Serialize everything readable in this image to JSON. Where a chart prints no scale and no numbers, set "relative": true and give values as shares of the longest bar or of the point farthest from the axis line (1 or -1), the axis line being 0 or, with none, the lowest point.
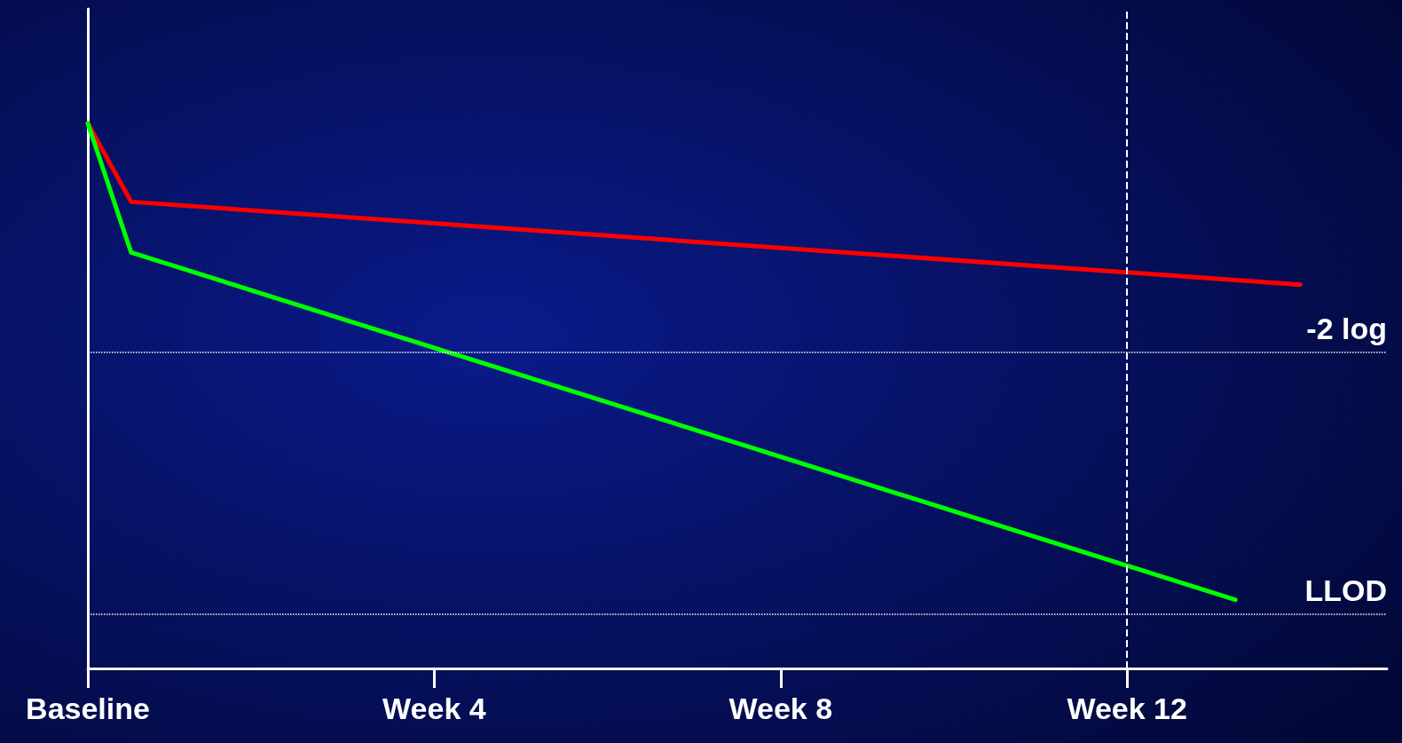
{
  "chart_data": {
    "type": "line",
    "relative": true,
    "marker": "none",
    "categories": [
      "Baseline",
      null,
      null,
      null,
      null,
      null,
      null,
      null,
      null,
      null,
      null,
      null,
      null,
      null,
      null,
      null,
      "Week 4",
      null,
      null,
      null,
      null,
      null,
      null,
      null,
      null,
      null,
      null,
      null,
      null,
      null,
      null,
      null,
      "Week 8",
      null,
      null,
      null,
      null,
      null,
      null,
      null,
      null,
      null,
      null,
      null,
      null,
      null,
      null,
      null,
      "Week 12",
      null,
      null,
      null,
      null,
      null,
      null,
      null,
      null,
      null,
      null,
      null,
      null
    ],
    "series": [
      {
        "color": "#ff0000",
        "values": [
          1,
          null,
          0.856,
          null,
          null,
          null,
          null,
          null,
          null,
          null,
          null,
          null,
          null,
          null,
          null,
          null,
          null,
          null,
          null,
          null,
          null,
          null,
          null,
          null,
          null,
          null,
          null,
          null,
          null,
          null,
          null,
          null,
          null,
          null,
          null,
          null,
          null,
          null,
          null,
          null,
          null,
          null,
          null,
          null,
          null,
          null,
          null,
          null,
          null,
          null,
          null,
          null,
          null,
          null,
          null,
          null,
          0.704,
          null,
          null,
          null,
          null
        ]
      },
      {
        "color": "#00ff00",
        "values": [
          1,
          null,
          0.763,
          null,
          null,
          null,
          null,
          null,
          null,
          null,
          null,
          null,
          null,
          null,
          null,
          null,
          null,
          null,
          null,
          null,
          null,
          null,
          null,
          null,
          null,
          null,
          null,
          null,
          null,
          null,
          null,
          null,
          null,
          null,
          null,
          null,
          null,
          null,
          null,
          null,
          null,
          null,
          null,
          null,
          null,
          null,
          null,
          null,
          null,
          null,
          null,
          null,
          null,
          0.126,
          null,
          null,
          null,
          null,
          null,
          null,
          null
        ]
      }
    ],
    "ref_lines": [
      {
        "axis": "y",
        "value": 0.581,
        "label": "-2 log",
        "color": "#ffffff",
        "line_style": "dotted"
      },
      {
        "axis": "y",
        "value": 0.101,
        "label": "LLOD",
        "color": "#ffffff",
        "line_style": "dotted"
      },
      {
        "axis": "x",
        "value": "Week 12",
        "color": "#ffffff",
        "line_style": "dashed"
      }
    ]
  }
}
